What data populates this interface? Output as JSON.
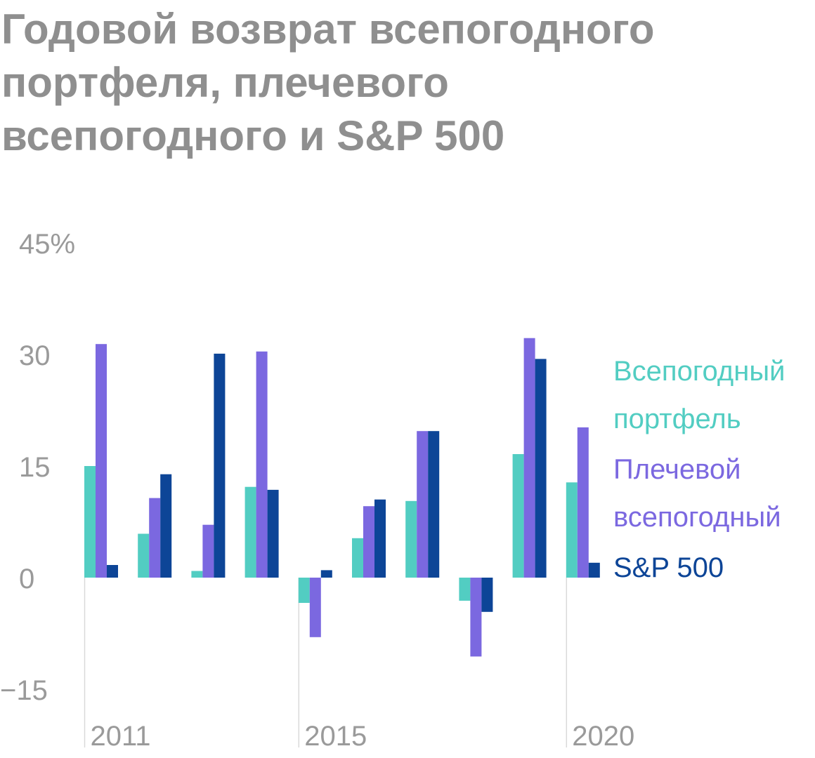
{
  "title_lines": [
    "Годовой возврат всепогодного",
    "портфеля, плечевого",
    "всепогодного и S&P 500"
  ],
  "chart_data": {
    "type": "bar",
    "title": "Годовой возврат всепогодного портфеля, плечевого всепогодного и S&P 500",
    "categories": [
      "2011",
      "2012",
      "2013",
      "2014",
      "2015",
      "2016",
      "2017",
      "2018",
      "2019",
      "2020"
    ],
    "x_tick_labels": [
      {
        "category": "2011",
        "label": "2011"
      },
      {
        "category": "2015",
        "label": "2015"
      },
      {
        "category": "2020",
        "label": "2020"
      }
    ],
    "y_ticks": [
      {
        "value": 45,
        "label": "45%"
      },
      {
        "value": 30,
        "label": "30"
      },
      {
        "value": 15,
        "label": "15"
      },
      {
        "value": 0,
        "label": "0"
      },
      {
        "value": -15,
        "label": "−15"
      }
    ],
    "ylim": [
      -20,
      45
    ],
    "grid": false,
    "legend_position": "right",
    "series": [
      {
        "name": "Всепогодный портфель",
        "legend_lines": [
          "Всепогодный",
          "портфель"
        ],
        "color": "#52cdc2",
        "values": [
          15.0,
          5.9,
          0.9,
          12.2,
          -3.4,
          5.3,
          10.3,
          -3.1,
          16.6,
          12.8
        ]
      },
      {
        "name": "Плечевой всепогодный",
        "legend_lines": [
          "Плечевой",
          "всепогодный"
        ],
        "color": "#7b68e0",
        "values": [
          31.4,
          10.7,
          7.1,
          30.4,
          -8.0,
          9.6,
          19.7,
          -10.6,
          32.2,
          20.2
        ]
      },
      {
        "name": "S&P 500",
        "legend_lines": [
          "S&P 500"
        ],
        "color": "#0d4597",
        "values": [
          1.7,
          13.9,
          30.1,
          11.8,
          1.0,
          10.5,
          19.7,
          -4.6,
          29.4,
          2.0
        ]
      }
    ]
  }
}
